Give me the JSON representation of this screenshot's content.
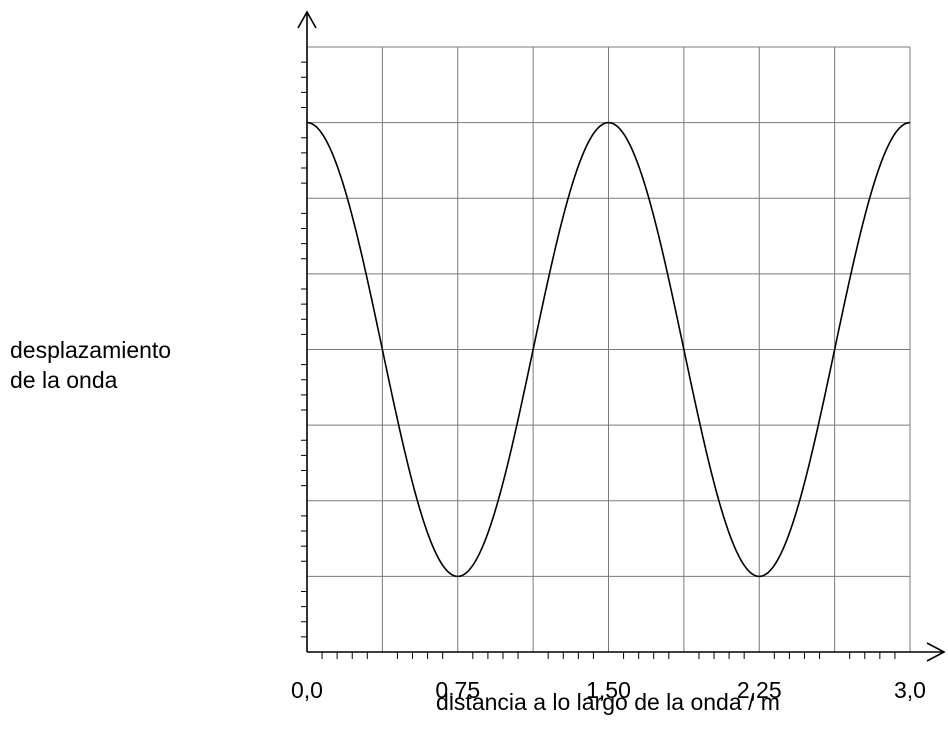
{
  "chart_data": {
    "type": "line",
    "title": "",
    "xlabel": "distancia a lo largo de la onda / m",
    "ylabel_lines": [
      "desplazamiento",
      "de la onda"
    ],
    "x_tick_labels": [
      "0,0",
      "0,75",
      "1,50",
      "2,25",
      "3,0"
    ],
    "x_ticks": [
      0,
      0.75,
      1.5,
      2.25,
      3.0
    ],
    "xlim": [
      0,
      3.0
    ],
    "y_unlabeled": true,
    "grid": true,
    "x_grid_step": 0.375,
    "y_grid_count": 8,
    "series": [
      {
        "wave": "cosine",
        "x_start": 0,
        "x_end": 3.0,
        "wavelength": 1.5,
        "amplitude_grid_units": 3,
        "maxima_x": [
          0,
          1.5,
          3.0
        ],
        "minima_x": [
          0.75,
          2.25
        ]
      }
    ]
  }
}
